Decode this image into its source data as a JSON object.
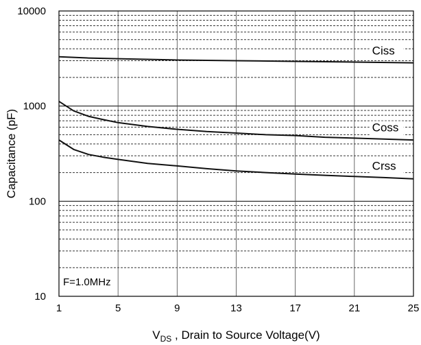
{
  "chart_data": {
    "type": "line",
    "xlabel": {
      "prefix": "V",
      "subscript": "DS",
      "rest": " , Drain to Source Voltage(V)"
    },
    "ylabel": "Capacitance (pF)",
    "x_ticks": [
      "1",
      "5",
      "9",
      "13",
      "17",
      "21",
      "25"
    ],
    "y_ticks": [
      "10",
      "100",
      "1000",
      "10000"
    ],
    "xlim": [
      1,
      25
    ],
    "ylim": [
      10,
      10000
    ],
    "y_scale": "log",
    "grid": true,
    "annotation": "F=1.0MHz",
    "series": [
      {
        "name": "Ciss",
        "x": [
          1,
          3,
          5,
          9,
          13,
          17,
          21,
          25
        ],
        "y": [
          3300,
          3200,
          3150,
          3050,
          3000,
          2950,
          2900,
          2850
        ]
      },
      {
        "name": "Coss",
        "x": [
          1,
          2,
          3,
          4,
          5,
          7,
          9,
          11,
          13,
          15,
          17,
          19,
          21,
          23,
          25
        ],
        "y": [
          1120,
          890,
          780,
          720,
          670,
          610,
          570,
          540,
          520,
          500,
          490,
          470,
          460,
          450,
          440
        ]
      },
      {
        "name": "Crss",
        "x": [
          1,
          2,
          3,
          4,
          5,
          7,
          9,
          11,
          13,
          15,
          17,
          19,
          21,
          23,
          25
        ],
        "y": [
          440,
          350,
          310,
          290,
          275,
          250,
          235,
          220,
          208,
          200,
          193,
          187,
          182,
          177,
          172
        ]
      }
    ],
    "colors": {
      "line": "#111111",
      "grid": "#333333",
      "axis": "#000000"
    }
  }
}
